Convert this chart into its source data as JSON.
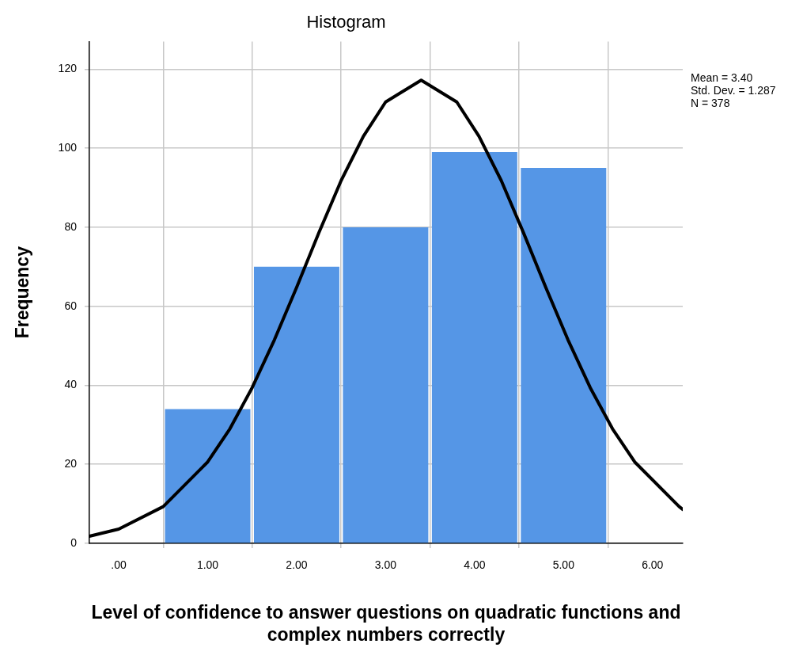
{
  "chart_data": {
    "type": "histogram",
    "title": "Histogram",
    "xlabel": "Level of confidence to answer questions on quadratic functions and complex numbers correctly",
    "ylabel": "Frequency",
    "bins": [
      0.5,
      1.5,
      2.5,
      3.5,
      4.5,
      5.5
    ],
    "values": [
      34,
      70,
      80,
      99,
      95
    ],
    "color": "#5596e6",
    "series": [
      {
        "type": "line",
        "color": "#000000",
        "x": [
          -0.33,
          0,
          0.5,
          1,
          1.25,
          1.5,
          1.75,
          2,
          2.25,
          2.5,
          2.75,
          3,
          3.4,
          3.8,
          4.05,
          4.3,
          4.55,
          4.8,
          5.05,
          5.3,
          5.55,
          5.8,
          6.3,
          6.34
        ],
        "values": [
          1.8,
          3.6,
          9.3,
          20.6,
          29,
          39.4,
          51.5,
          64.8,
          78.6,
          91.8,
          103,
          111.7,
          117.2,
          111.7,
          103,
          91.8,
          78.6,
          64.8,
          51.5,
          39.4,
          29,
          20.6,
          9.3,
          8.6
        ]
      }
    ],
    "marker": "none",
    "grid": true,
    "xlim": [
      -0.33,
      6.34
    ],
    "xticks": [
      {
        "value": 0,
        "label": ".00"
      },
      {
        "value": 1,
        "label": "1.00"
      },
      {
        "value": 2,
        "label": "2.00"
      },
      {
        "value": 3,
        "label": "3.00"
      },
      {
        "value": 4,
        "label": "4.00"
      },
      {
        "value": 5,
        "label": "5.00"
      },
      {
        "value": 6,
        "label": "6.00"
      }
    ],
    "ylim": [
      0,
      127
    ],
    "yticks": [
      0,
      20,
      40,
      60,
      80,
      100,
      120
    ],
    "annotations": [
      "Mean = 3.40",
      "Std. Dev. = 1.287",
      "N = 378"
    ]
  }
}
